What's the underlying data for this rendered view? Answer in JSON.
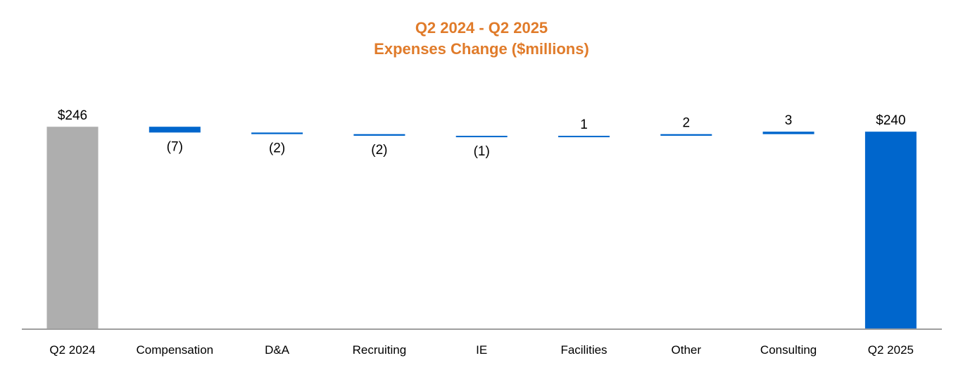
{
  "chart_data": {
    "type": "bar",
    "subtype": "waterfall",
    "title": "Q2 2024 - Q2 2025",
    "subtitle": "Expenses Change ($millions)",
    "xlabel": "",
    "ylabel": "",
    "categories": [
      "Q2 2024",
      "Compensation",
      "D&A",
      "Recruiting",
      "IE",
      "Facilities",
      "Other",
      "Consulting",
      "Q2 2025"
    ],
    "values": [
      246,
      -7,
      -2,
      -2,
      -1,
      1,
      2,
      3,
      240
    ],
    "value_labels": [
      "$246",
      "(7)",
      "(2)",
      "(2)",
      "(1)",
      "1",
      "2",
      "3",
      "$240"
    ],
    "bar_kinds": [
      "total",
      "delta",
      "delta",
      "delta",
      "delta",
      "delta",
      "delta",
      "delta",
      "total"
    ],
    "ylim": [
      0,
      250
    ],
    "grid": false,
    "legend": "none",
    "colors": {
      "start_total": "#AEAEAE",
      "end_total": "#0066CC",
      "delta": "#0066CC",
      "title": "#E07B2A",
      "axis": "#9E9E9E",
      "text": "#000000"
    }
  }
}
